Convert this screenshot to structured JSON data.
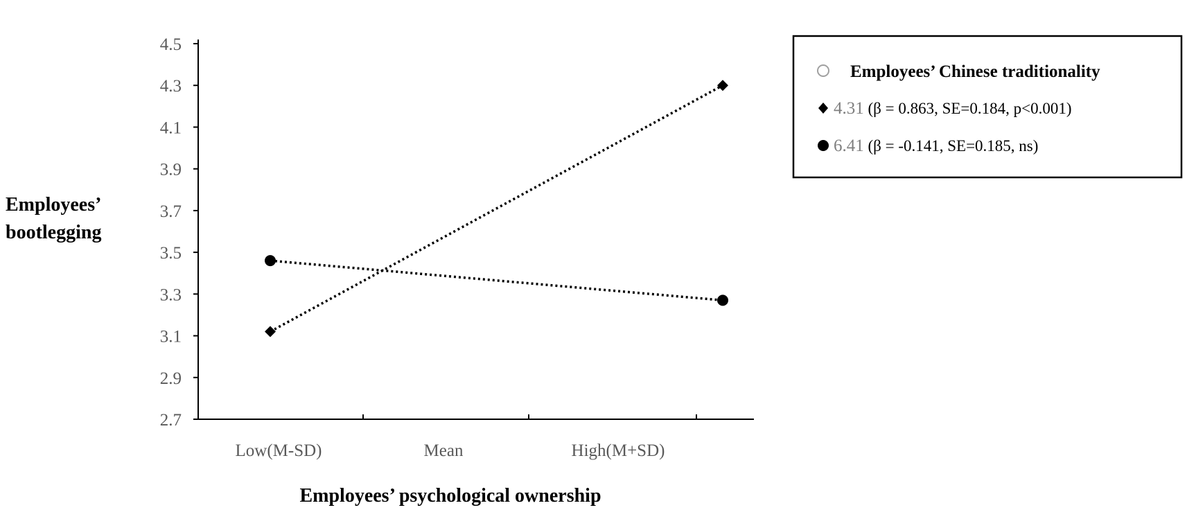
{
  "chart_data": {
    "type": "line",
    "categories": [
      "Low(M-SD)",
      "Mean",
      "High(M+SD)"
    ],
    "ylabel": "Employees’\nbootlegging",
    "xlabel": "Employees’ psychological ownership",
    "ylim": [
      2.7,
      4.5
    ],
    "yticks": [
      "4.5",
      "4.3",
      "4.1",
      "3.9",
      "3.7",
      "3.5",
      "3.3",
      "3.1",
      "2.9",
      "2.7"
    ],
    "grid": false,
    "legend_position": "top-right",
    "legend_title": "Employees’ Chinese traditionality",
    "series": [
      {
        "marker": "diamond",
        "line_style": "dotted",
        "label_value": "4.31",
        "label_stats": "(β = 0.863, SE=0.184, p<0.001)",
        "x": [
          "Low(M-SD)",
          "High(M+SD)"
        ],
        "values": [
          3.12,
          4.3
        ]
      },
      {
        "marker": "circle",
        "line_style": "dotted",
        "label_value": "6.41",
        "label_stats": "(β = -0.141, SE=0.185, ns)",
        "x": [
          "Low(M-SD)",
          "High(M+SD)"
        ],
        "values": [
          3.46,
          3.27
        ]
      }
    ]
  }
}
